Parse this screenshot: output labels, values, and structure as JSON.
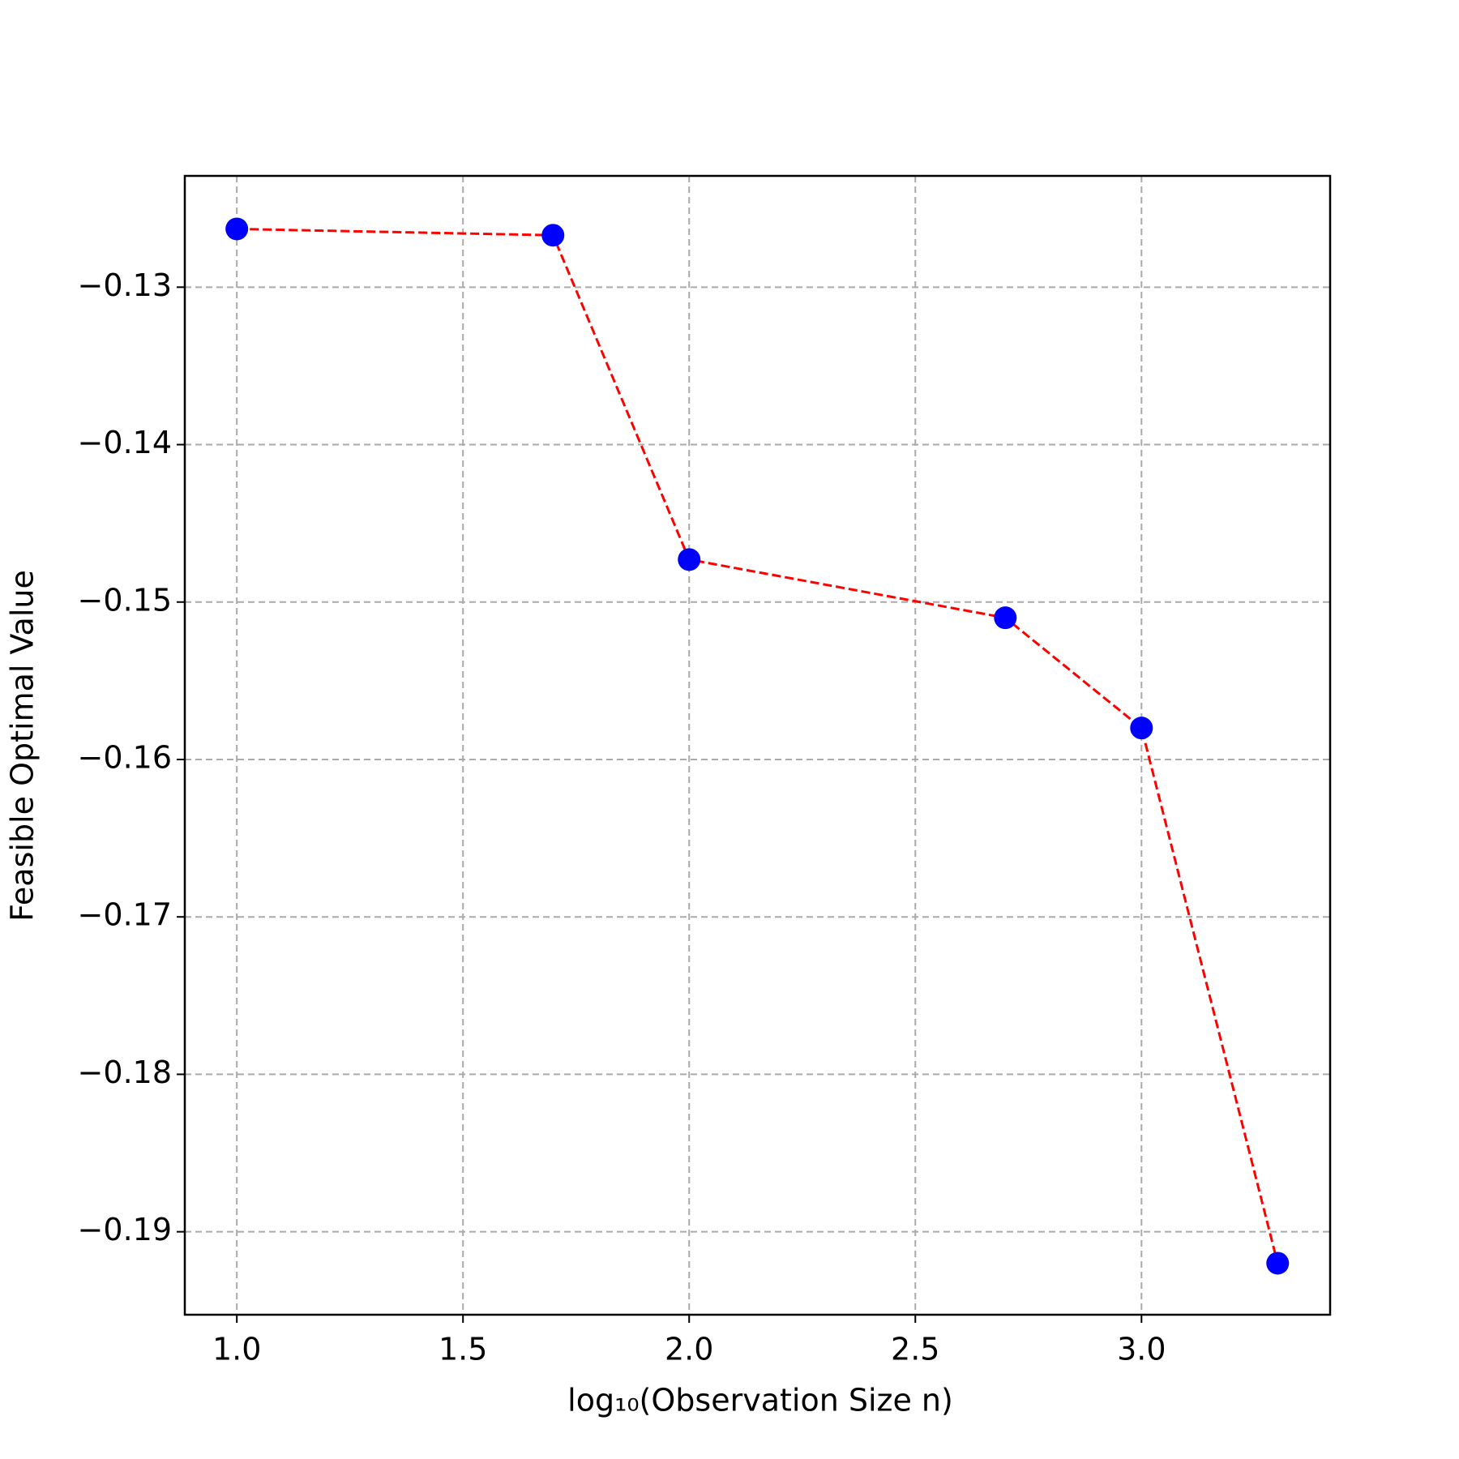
{
  "chart_data": {
    "type": "line",
    "xlabel": "log₁₀(Observation Size n)",
    "ylabel": "Feasible Optimal Value",
    "x": [
      1.0,
      1.699,
      2.0,
      2.699,
      3.0,
      3.301
    ],
    "series": [
      {
        "line_color": "#ff0000",
        "marker_color": "#0000ff",
        "values": [
          -0.1263,
          -0.1267,
          -0.1473,
          -0.151,
          -0.158,
          -0.192
        ]
      }
    ],
    "xlim": [
      0.885,
      3.417
    ],
    "ylim": [
      -0.19527,
      -0.12293
    ],
    "xticks": [
      {
        "value": 1.0,
        "label": "1.0"
      },
      {
        "value": 1.5,
        "label": "1.5"
      },
      {
        "value": 2.0,
        "label": "2.0"
      },
      {
        "value": 2.5,
        "label": "2.5"
      },
      {
        "value": 3.0,
        "label": "3.0"
      }
    ],
    "yticks": [
      {
        "value": -0.19,
        "label": "−0.19"
      },
      {
        "value": -0.18,
        "label": "−0.18"
      },
      {
        "value": -0.17,
        "label": "−0.17"
      },
      {
        "value": -0.16,
        "label": "−0.16"
      },
      {
        "value": -0.15,
        "label": "−0.15"
      },
      {
        "value": -0.14,
        "label": "−0.14"
      },
      {
        "value": -0.13,
        "label": "−0.13"
      }
    ],
    "grid": true
  }
}
